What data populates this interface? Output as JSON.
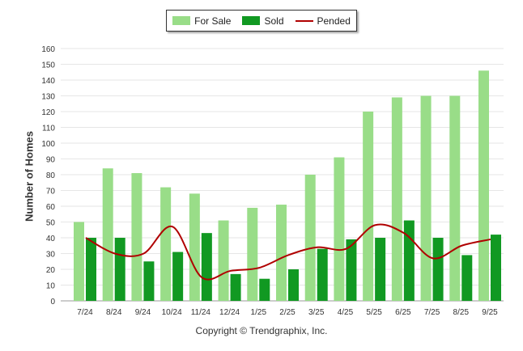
{
  "chart_data": {
    "type": "bar",
    "title": "",
    "xlabel": "",
    "ylabel": "Number of Homes",
    "ylim": [
      0,
      160
    ],
    "ytick_step": 10,
    "grid": true,
    "legend_position": "top-center",
    "categories": [
      "7/24",
      "8/24",
      "9/24",
      "10/24",
      "11/24",
      "12/24",
      "1/25",
      "2/25",
      "3/25",
      "4/25",
      "5/25",
      "6/25",
      "7/25",
      "8/25",
      "9/25"
    ],
    "series": [
      {
        "name": "For Sale",
        "kind": "bar",
        "color": "#99dd88",
        "values": [
          50,
          84,
          81,
          72,
          68,
          51,
          59,
          61,
          80,
          91,
          120,
          129,
          130,
          130,
          146
        ]
      },
      {
        "name": "Sold",
        "kind": "bar",
        "color": "#119922",
        "values": [
          40,
          40,
          25,
          31,
          43,
          17,
          14,
          20,
          33,
          39,
          40,
          51,
          40,
          29,
          42
        ]
      },
      {
        "name": "Pended",
        "kind": "line",
        "color": "#b00000",
        "values": [
          40,
          30,
          30,
          47,
          15,
          19,
          21,
          29,
          34,
          33,
          48,
          43,
          27,
          35,
          39
        ]
      }
    ]
  },
  "footer": {
    "copyright": "Copyright © Trendgraphix, Inc."
  }
}
